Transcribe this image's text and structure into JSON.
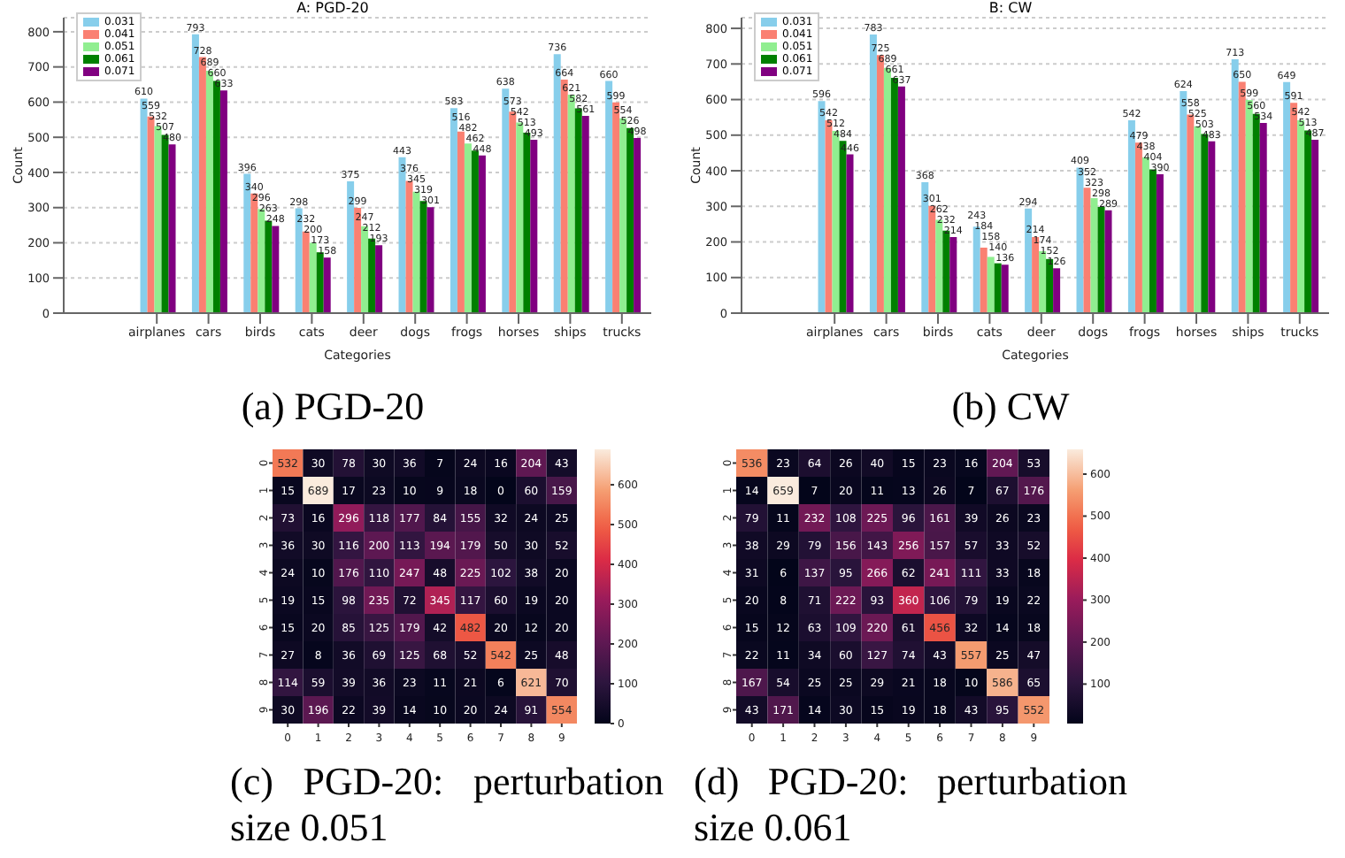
{
  "chart_data": [
    {
      "type": "bar",
      "title": "A: PGD-20",
      "xlabel": "Categories",
      "ylabel": "Count",
      "categories": [
        "airplanes",
        "cars",
        "birds",
        "cats",
        "deer",
        "dogs",
        "frogs",
        "horses",
        "ships",
        "trucks"
      ],
      "series": [
        {
          "name": "0.031",
          "color": "#87ceeb",
          "values": [
            610,
            793,
            396,
            298,
            375,
            443,
            583,
            638,
            736,
            660
          ]
        },
        {
          "name": "0.041",
          "color": "#fa8072",
          "values": [
            559,
            728,
            340,
            232,
            299,
            376,
            516,
            573,
            664,
            599
          ]
        },
        {
          "name": "0.051",
          "color": "#90ee90",
          "values": [
            532,
            689,
            296,
            200,
            247,
            345,
            482,
            542,
            621,
            554
          ]
        },
        {
          "name": "0.061",
          "color": "#008000",
          "values": [
            507,
            660,
            263,
            173,
            212,
            319,
            462,
            513,
            582,
            526
          ]
        },
        {
          "name": "0.071",
          "color": "#800080",
          "values": [
            480,
            633,
            248,
            158,
            193,
            301,
            448,
            493,
            561,
            498
          ]
        }
      ],
      "ylim": [
        0,
        840
      ],
      "yticks": [
        0,
        100,
        200,
        300,
        400,
        500,
        600,
        700,
        800
      ],
      "grid": "y",
      "legend": "top left",
      "data_labels": true,
      "annotations": [
        "(a) PGD-20"
      ]
    },
    {
      "type": "bar",
      "title": "B: CW",
      "xlabel": "Categories",
      "ylabel": "Count",
      "categories": [
        "airplanes",
        "cars",
        "birds",
        "cats",
        "deer",
        "dogs",
        "frogs",
        "horses",
        "ships",
        "trucks"
      ],
      "series": [
        {
          "name": "0.031",
          "color": "#87ceeb",
          "values": [
            596,
            783,
            368,
            243,
            294,
            409,
            542,
            624,
            713,
            649
          ]
        },
        {
          "name": "0.041",
          "color": "#fa8072",
          "values": [
            542,
            725,
            301,
            184,
            214,
            352,
            479,
            558,
            650,
            591
          ]
        },
        {
          "name": "0.051",
          "color": "#90ee90",
          "values": [
            512,
            689,
            262,
            158,
            174,
            323,
            438,
            525,
            599,
            542
          ]
        },
        {
          "name": "0.061",
          "color": "#008000",
          "values": [
            484,
            661,
            232,
            140,
            152,
            298,
            404,
            503,
            560,
            513
          ]
        },
        {
          "name": "0.071",
          "color": "#800080",
          "values": [
            446,
            637,
            214,
            136,
            126,
            289,
            390,
            483,
            534,
            487
          ]
        }
      ],
      "ylim": [
        0,
        830
      ],
      "yticks": [
        0,
        100,
        200,
        300,
        400,
        500,
        600,
        700,
        800
      ],
      "grid": "y",
      "legend": "top left",
      "data_labels": true,
      "annotations": [
        "(b) CW"
      ]
    },
    {
      "type": "heatmap",
      "categories": [
        "0",
        "1",
        "2",
        "3",
        "4",
        "5",
        "6",
        "7",
        "8",
        "9"
      ],
      "y_categories": [
        "0",
        "1",
        "2",
        "3",
        "4",
        "5",
        "6",
        "7",
        "8",
        "9"
      ],
      "cells": [
        [
          532,
          30,
          78,
          30,
          36,
          7,
          24,
          16,
          204,
          43
        ],
        [
          15,
          689,
          17,
          23,
          10,
          9,
          18,
          0,
          60,
          159
        ],
        [
          73,
          16,
          296,
          118,
          177,
          84,
          155,
          32,
          24,
          25
        ],
        [
          36,
          30,
          116,
          200,
          113,
          194,
          179,
          50,
          30,
          52
        ],
        [
          24,
          10,
          176,
          110,
          247,
          48,
          225,
          102,
          38,
          20
        ],
        [
          19,
          15,
          98,
          235,
          72,
          345,
          117,
          60,
          19,
          20
        ],
        [
          15,
          20,
          85,
          125,
          179,
          42,
          482,
          20,
          12,
          20
        ],
        [
          27,
          8,
          36,
          69,
          125,
          68,
          52,
          542,
          25,
          48
        ],
        [
          114,
          59,
          39,
          36,
          23,
          11,
          21,
          6,
          621,
          70
        ],
        [
          30,
          196,
          22,
          39,
          14,
          10,
          20,
          24,
          91,
          554
        ]
      ],
      "clim": [
        0,
        689
      ],
      "cticks": [
        0,
        100,
        200,
        300,
        400,
        500,
        600
      ],
      "data_labels": true,
      "annotations": [
        "(c) PGD-20: perturbation size 0.051"
      ]
    },
    {
      "type": "heatmap",
      "categories": [
        "0",
        "1",
        "2",
        "3",
        "4",
        "5",
        "6",
        "7",
        "8",
        "9"
      ],
      "y_categories": [
        "0",
        "1",
        "2",
        "3",
        "4",
        "5",
        "6",
        "7",
        "8",
        "9"
      ],
      "cells": [
        [
          536,
          23,
          64,
          26,
          40,
          15,
          23,
          16,
          204,
          53
        ],
        [
          14,
          659,
          7,
          20,
          11,
          13,
          26,
          7,
          67,
          176
        ],
        [
          79,
          11,
          232,
          108,
          225,
          96,
          161,
          39,
          26,
          23
        ],
        [
          38,
          29,
          79,
          156,
          143,
          256,
          157,
          57,
          33,
          52
        ],
        [
          31,
          6,
          137,
          95,
          266,
          62,
          241,
          111,
          33,
          18
        ],
        [
          20,
          8,
          71,
          222,
          93,
          360,
          106,
          79,
          19,
          22
        ],
        [
          15,
          12,
          63,
          109,
          220,
          61,
          456,
          32,
          14,
          18
        ],
        [
          22,
          11,
          34,
          60,
          127,
          74,
          43,
          557,
          25,
          47
        ],
        [
          167,
          54,
          25,
          25,
          29,
          21,
          18,
          10,
          586,
          65
        ],
        [
          43,
          171,
          14,
          30,
          15,
          19,
          18,
          43,
          95,
          552
        ]
      ],
      "clim": [
        6,
        659
      ],
      "cticks": [
        100,
        200,
        300,
        400,
        500,
        600
      ],
      "data_labels": true,
      "annotations": [
        "(d) PGD-20: perturbation size 0.061"
      ]
    }
  ]
}
